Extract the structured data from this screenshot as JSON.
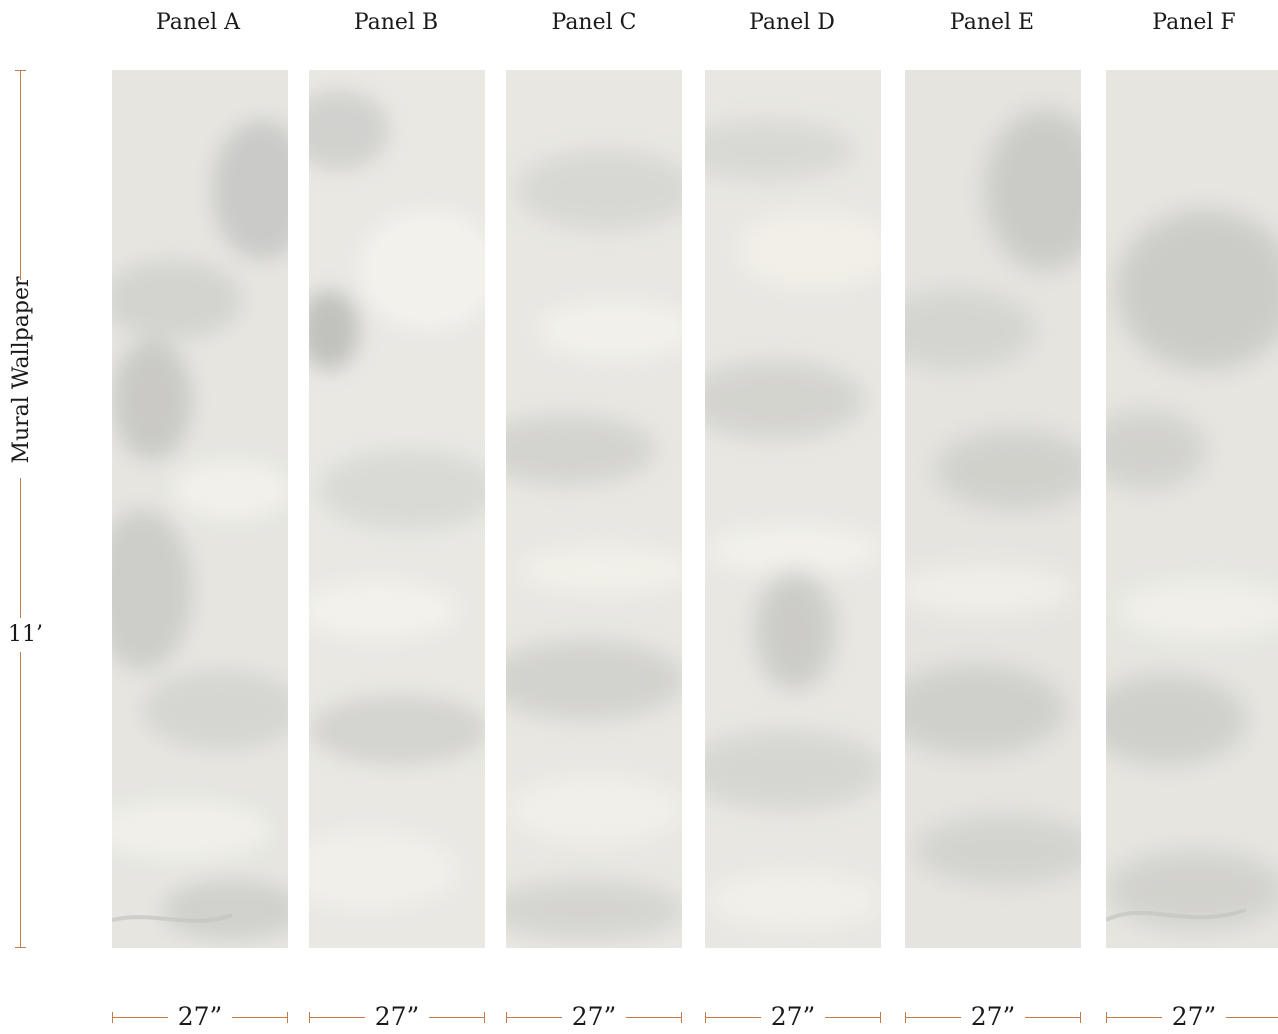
{
  "panels": [
    {
      "title": "Panel A",
      "width_label": "27”"
    },
    {
      "title": "Panel B",
      "width_label": "27”"
    },
    {
      "title": "Panel C",
      "width_label": "27”"
    },
    {
      "title": "Panel D",
      "width_label": "27”"
    },
    {
      "title": "Panel E",
      "width_label": "27”"
    },
    {
      "title": "Panel F",
      "width_label": "27”"
    }
  ],
  "side": {
    "label": "Mural Wallpaper",
    "height_label": "11’"
  },
  "colors": {
    "dimension_line": "#c47a4a",
    "panel_base": "#e7e6e1",
    "panel_shade": "#c9c9c6",
    "panel_light": "#f3f2ec"
  }
}
